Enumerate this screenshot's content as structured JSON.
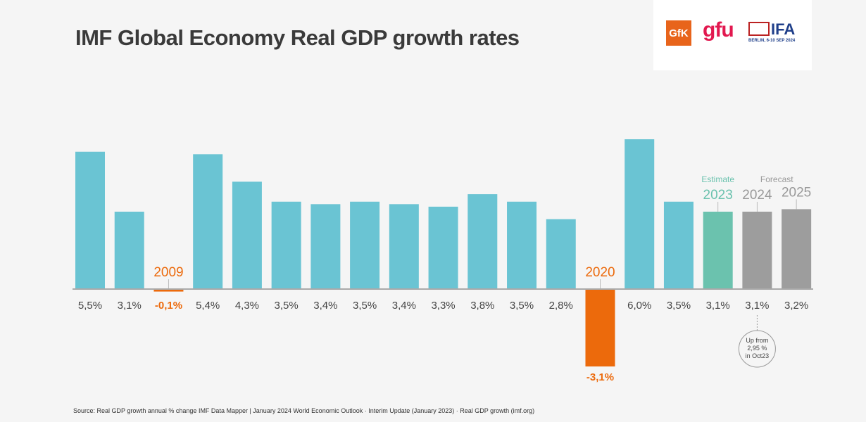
{
  "title": "IMF Global Economy Real GDP growth rates",
  "logos": {
    "gfk": "GfK",
    "gfu": "gfu",
    "ifa": "IFA",
    "ifa_sub": "BERLIN, 6-10 SEP 2024"
  },
  "source": "Source: Real GDP growth annual % change IMF Data Mapper | January 2024 World Economic Outlook · Interim Update (January 2023) · Real GDP growth (imf.org)",
  "colors": {
    "actual": "#6ac4d3",
    "negative": "#ec6a0c",
    "estimate": "#6bc2ae",
    "forecast": "#9d9d9d"
  },
  "chart_data": {
    "type": "bar",
    "categories": [
      "",
      "",
      "2009",
      "",
      "",
      "",
      "",
      "",
      "",
      "",
      "",
      "",
      "",
      "2020",
      "",
      "",
      "2023",
      "2024",
      "2025"
    ],
    "values": [
      5.5,
      3.1,
      -0.1,
      5.4,
      4.3,
      3.5,
      3.4,
      3.5,
      3.4,
      3.3,
      3.8,
      3.5,
      2.8,
      -3.1,
      6.0,
      3.5,
      3.1,
      3.1,
      3.2
    ],
    "value_labels": [
      "5,5%",
      "3,1%",
      "-0,1%",
      "5,4%",
      "4,3%",
      "3,5%",
      "3,4%",
      "3,5%",
      "3,4%",
      "3,3%",
      "3,8%",
      "3,5%",
      "2,8%",
      "-3,1%",
      "6,0%",
      "3,5%",
      "3,1%",
      "3,1%",
      "3,2%"
    ],
    "kinds": [
      "actual",
      "actual",
      "negative",
      "actual",
      "actual",
      "actual",
      "actual",
      "actual",
      "actual",
      "actual",
      "actual",
      "actual",
      "actual",
      "negative",
      "actual",
      "actual",
      "estimate",
      "forecast",
      "forecast"
    ],
    "group_labels": {
      "estimate": "Estimate",
      "forecast": "Forecast"
    },
    "annotation": {
      "lines": [
        "Up from",
        "2,95 %",
        "in Oct23"
      ]
    },
    "ylim": [
      -3.1,
      6.0
    ]
  }
}
